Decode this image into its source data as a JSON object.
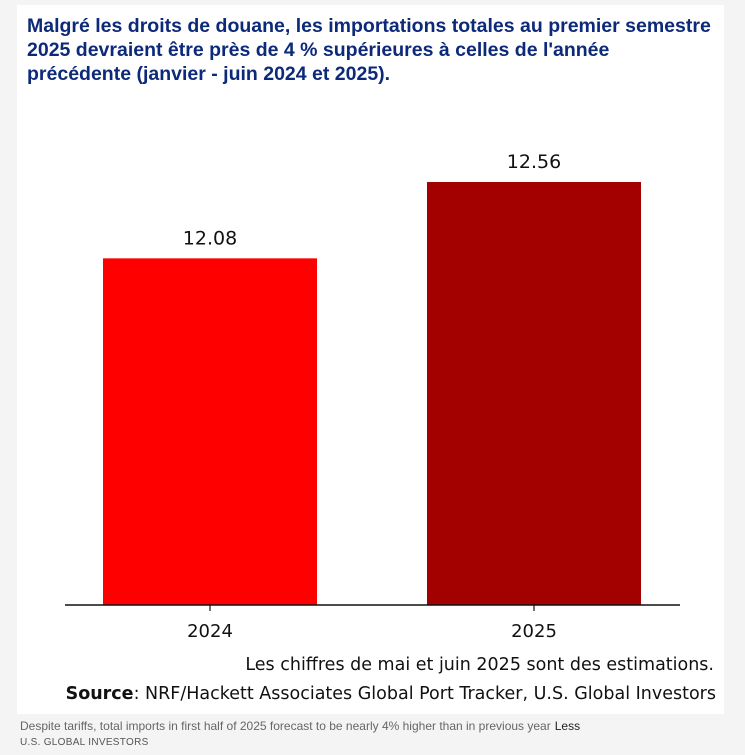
{
  "chart_data": {
    "type": "bar",
    "title": "Malgré les droits de douane, les importations totales au premier semestre 2025 devraient être près de 4 % supérieures à celles de l'année précédente (janvier - juin 2024 et 2025).",
    "categories": [
      "2024",
      "2025"
    ],
    "values": [
      12.08,
      12.56
    ],
    "value_labels": [
      "12.08",
      "12.56"
    ],
    "colors": [
      "#ff0000",
      "#a30000"
    ],
    "ylim": [
      9.9,
      12.95
    ],
    "xlabel": "",
    "ylabel": "",
    "grid": false,
    "legend": "none"
  },
  "note": "Les chiffres de mai et juin 2025 sont des estimations.",
  "source": {
    "label": "Source",
    "text": ": NRF/Hackett Associates Global Port Tracker, U.S. Global Investors"
  },
  "caption": {
    "text": "Despite tariffs, total imports in first half of 2025 forecast to be nearly 4% higher than in previous year",
    "less_link": "Less"
  },
  "credit": "U.S. GLOBAL INVESTORS"
}
